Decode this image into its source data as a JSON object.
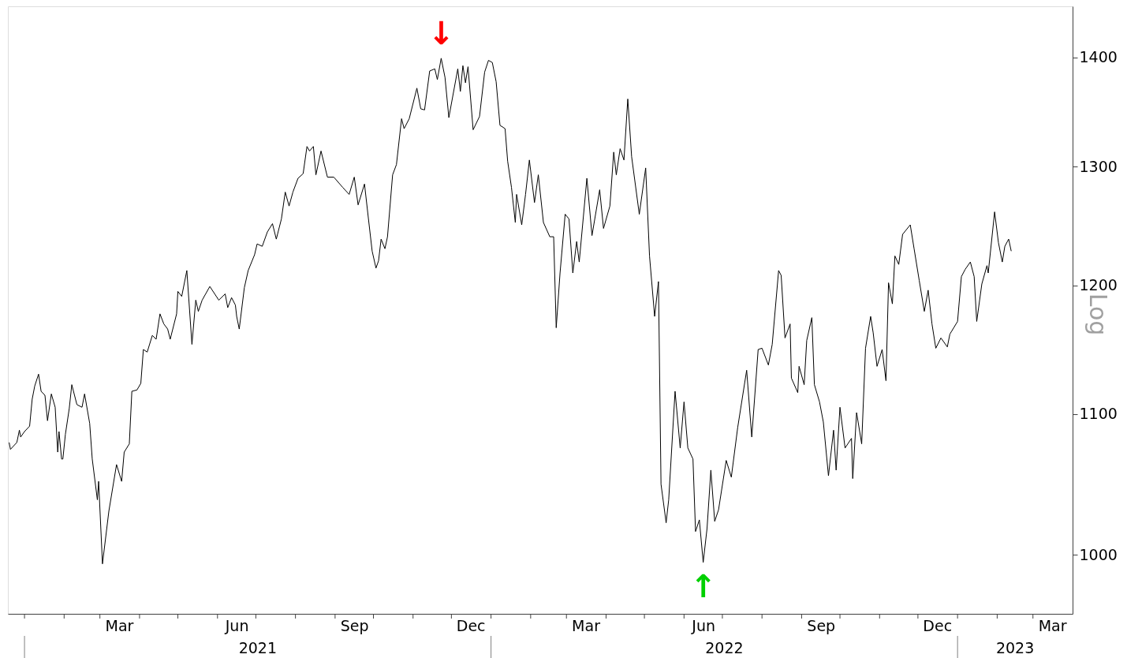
{
  "chart_data": {
    "type": "line",
    "ylabel": "Log",
    "log": true,
    "grid": false,
    "line_style": "solid",
    "ylim": [
      961,
      1449
    ],
    "yticks": [
      1000,
      1100,
      1200,
      1300,
      1400
    ],
    "xlim": [
      "2020-12-19",
      "2023-04-01"
    ],
    "xticks": [
      {
        "value": "2021-01-01",
        "label": null
      },
      {
        "value": "2021-02-01",
        "label": null
      },
      {
        "value": "2021-03-01",
        "label": null
      },
      {
        "value": "2021-03-16",
        "label": "Mar"
      },
      {
        "value": "2021-04-01",
        "label": null
      },
      {
        "value": "2021-05-01",
        "label": null
      },
      {
        "value": "2021-06-01",
        "label": null
      },
      {
        "value": "2021-06-16",
        "label": "Jun"
      },
      {
        "value": "2021-07-01",
        "label": null
      },
      {
        "value": "2021-08-01",
        "label": null
      },
      {
        "value": "2021-09-01",
        "label": null
      },
      {
        "value": "2021-09-16",
        "label": "Sep"
      },
      {
        "value": "2021-10-01",
        "label": null
      },
      {
        "value": "2021-11-01",
        "label": null
      },
      {
        "value": "2021-12-01",
        "label": null
      },
      {
        "value": "2021-12-16",
        "label": "Dec"
      },
      {
        "value": "2022-01-01",
        "label": null
      },
      {
        "value": "2022-02-01",
        "label": null
      },
      {
        "value": "2022-03-01",
        "label": null
      },
      {
        "value": "2022-03-16",
        "label": "Mar"
      },
      {
        "value": "2022-04-01",
        "label": null
      },
      {
        "value": "2022-05-01",
        "label": null
      },
      {
        "value": "2022-06-01",
        "label": null
      },
      {
        "value": "2022-06-16",
        "label": "Jun"
      },
      {
        "value": "2022-07-01",
        "label": null
      },
      {
        "value": "2022-08-01",
        "label": null
      },
      {
        "value": "2022-09-01",
        "label": null
      },
      {
        "value": "2022-09-16",
        "label": "Sep"
      },
      {
        "value": "2022-10-01",
        "label": null
      },
      {
        "value": "2022-11-01",
        "label": null
      },
      {
        "value": "2022-12-01",
        "label": null
      },
      {
        "value": "2022-12-16",
        "label": "Dec"
      },
      {
        "value": "2023-01-01",
        "label": null
      },
      {
        "value": "2023-02-01",
        "label": null
      },
      {
        "value": "2023-03-01",
        "label": null
      },
      {
        "value": "2023-03-16",
        "label": "Mar"
      }
    ],
    "annotations": [
      "↓",
      "↑",
      "2021",
      "2022",
      "2023"
    ],
    "x": [
      "2020-12-20",
      "2020-12-21",
      "2020-12-26",
      "2020-12-28",
      "2020-12-29",
      "2021-01-01",
      "2021-01-05",
      "2021-01-07",
      "2021-01-09",
      "2021-01-12",
      "2021-01-14",
      "2021-01-17",
      "2021-01-19",
      "2021-01-22",
      "2021-01-25",
      "2021-01-27",
      "2021-01-28",
      "2021-01-30",
      "2021-01-31",
      "2021-02-02",
      "2021-02-05",
      "2021-02-07",
      "2021-02-11",
      "2021-02-15",
      "2021-02-17",
      "2021-02-21",
      "2021-02-23",
      "2021-02-27",
      "2021-02-28",
      "2021-03-03",
      "2021-03-08",
      "2021-03-14",
      "2021-03-18",
      "2021-03-20",
      "2021-03-24",
      "2021-03-26",
      "2021-03-30",
      "2021-04-02",
      "2021-04-04",
      "2021-04-07",
      "2021-04-11",
      "2021-04-14",
      "2021-04-17",
      "2021-04-20",
      "2021-04-23",
      "2021-04-25",
      "2021-04-30",
      "2021-05-01",
      "2021-05-04",
      "2021-05-08",
      "2021-05-12",
      "2021-05-15",
      "2021-05-17",
      "2021-05-20",
      "2021-05-26",
      "2021-06-02",
      "2021-06-07",
      "2021-06-09",
      "2021-06-12",
      "2021-06-15",
      "2021-06-16",
      "2021-06-18",
      "2021-06-22",
      "2021-06-25",
      "2021-06-30",
      "2021-07-02",
      "2021-07-06",
      "2021-07-10",
      "2021-07-14",
      "2021-07-17",
      "2021-07-21",
      "2021-07-24",
      "2021-07-27",
      "2021-07-30",
      "2021-08-03",
      "2021-08-07",
      "2021-08-10",
      "2021-08-12",
      "2021-08-15",
      "2021-08-17",
      "2021-08-21",
      "2021-08-26",
      "2021-08-31",
      "2021-09-07",
      "2021-09-12",
      "2021-09-16",
      "2021-09-19",
      "2021-09-24",
      "2021-09-27",
      "2021-09-30",
      "2021-10-03",
      "2021-10-05",
      "2021-10-07",
      "2021-10-10",
      "2021-10-12",
      "2021-10-16",
      "2021-10-19",
      "2021-10-23",
      "2021-10-25",
      "2021-10-29",
      "2021-11-04",
      "2021-11-07",
      "2021-11-10",
      "2021-11-14",
      "2021-11-18",
      "2021-11-20",
      "2021-11-23",
      "2021-11-26",
      "2021-11-29",
      "2021-12-06",
      "2021-12-08",
      "2021-12-10",
      "2021-12-12",
      "2021-12-14",
      "2021-12-18",
      "2021-12-23",
      "2021-12-27",
      "2021-12-30",
      "2022-01-02",
      "2022-01-05",
      "2022-01-08",
      "2022-01-12",
      "2022-01-14",
      "2022-01-17",
      "2022-01-20",
      "2022-01-21",
      "2022-01-25",
      "2022-01-28",
      "2022-01-31",
      "2022-02-04",
      "2022-02-07",
      "2022-02-11",
      "2022-02-16",
      "2022-02-19",
      "2022-02-21",
      "2022-02-24",
      "2022-02-28",
      "2022-03-03",
      "2022-03-06",
      "2022-03-09",
      "2022-03-11",
      "2022-03-17",
      "2022-03-21",
      "2022-03-27",
      "2022-03-30",
      "2022-04-04",
      "2022-04-07",
      "2022-04-09",
      "2022-04-12",
      "2022-04-15",
      "2022-04-18",
      "2022-04-21",
      "2022-04-27",
      "2022-05-02",
      "2022-05-05",
      "2022-05-09",
      "2022-05-12",
      "2022-05-14",
      "2022-05-18",
      "2022-05-20",
      "2022-05-25",
      "2022-05-29",
      "2022-06-01",
      "2022-06-04",
      "2022-06-08",
      "2022-06-10",
      "2022-06-13",
      "2022-06-16",
      "2022-06-19",
      "2022-06-22",
      "2022-06-25",
      "2022-06-28",
      "2022-07-04",
      "2022-07-08",
      "2022-07-13",
      "2022-07-20",
      "2022-07-24",
      "2022-07-29",
      "2022-08-01",
      "2022-08-06",
      "2022-08-09",
      "2022-08-14",
      "2022-08-16",
      "2022-08-19",
      "2022-08-23",
      "2022-08-24",
      "2022-08-29",
      "2022-08-30",
      "2022-09-03",
      "2022-09-05",
      "2022-09-09",
      "2022-09-11",
      "2022-09-15",
      "2022-09-18",
      "2022-09-22",
      "2022-09-26",
      "2022-09-28",
      "2022-10-01",
      "2022-10-05",
      "2022-10-10",
      "2022-10-11",
      "2022-10-14",
      "2022-10-18",
      "2022-10-21",
      "2022-10-25",
      "2022-10-27",
      "2022-10-30",
      "2022-11-03",
      "2022-11-06",
      "2022-11-08",
      "2022-11-11",
      "2022-11-13",
      "2022-11-16",
      "2022-11-19",
      "2022-11-22",
      "2022-11-25",
      "2022-11-28",
      "2022-12-02",
      "2022-12-06",
      "2022-12-09",
      "2022-12-12",
      "2022-12-15",
      "2022-12-19",
      "2022-12-24",
      "2022-12-26",
      "2023-01-01",
      "2023-01-04",
      "2023-01-07",
      "2023-01-11",
      "2023-01-14",
      "2023-01-16",
      "2023-01-20",
      "2023-01-24",
      "2023-01-25",
      "2023-01-30",
      "2023-02-02",
      "2023-02-05",
      "2023-02-07",
      "2023-02-10",
      "2023-02-12"
    ],
    "series": [
      {
        "color": "#000000",
        "values": [
          1079,
          1074,
          1079,
          1088,
          1083,
          1087,
          1091,
          1111,
          1121,
          1130,
          1117,
          1114,
          1095,
          1115,
          1105,
          1072,
          1087,
          1067,
          1067,
          1085,
          1104,
          1122,
          1107,
          1105,
          1115,
          1093,
          1067,
          1038,
          1051,
          994,
          1030,
          1063,
          1051,
          1072,
          1078,
          1117,
          1118,
          1123,
          1149,
          1147,
          1160,
          1157,
          1177,
          1169,
          1165,
          1157,
          1177,
          1195,
          1191,
          1212,
          1153,
          1188,
          1179,
          1188,
          1199,
          1188,
          1193,
          1182,
          1190,
          1184,
          1175,
          1165,
          1198,
          1212,
          1225,
          1234,
          1232,
          1244,
          1251,
          1238,
          1255,
          1278,
          1266,
          1278,
          1290,
          1294,
          1318,
          1314,
          1318,
          1293,
          1314,
          1291,
          1291,
          1282,
          1276,
          1291,
          1267,
          1285,
          1256,
          1228,
          1214,
          1220,
          1238,
          1230,
          1240,
          1293,
          1302,
          1343,
          1334,
          1343,
          1371,
          1352,
          1351,
          1387,
          1389,
          1379,
          1399,
          1381,
          1344,
          1389,
          1368,
          1392,
          1376,
          1391,
          1333,
          1345,
          1386,
          1397,
          1395,
          1377,
          1337,
          1334,
          1305,
          1282,
          1252,
          1276,
          1250,
          1276,
          1306,
          1269,
          1293,
          1252,
          1240,
          1240,
          1166,
          1210,
          1259,
          1255,
          1210,
          1236,
          1219,
          1290,
          1241,
          1280,
          1247,
          1266,
          1313,
          1293,
          1316,
          1306,
          1361,
          1309,
          1259,
          1299,
          1224,
          1175,
          1203,
          1049,
          1022,
          1038,
          1117,
          1075,
          1109,
          1075,
          1067,
          1016,
          1024,
          995,
          1018,
          1059,
          1023,
          1031,
          1066,
          1054,
          1090,
          1133,
          1083,
          1149,
          1150,
          1137,
          1153,
          1212,
          1208,
          1158,
          1169,
          1127,
          1116,
          1136,
          1122,
          1156,
          1174,
          1122,
          1109,
          1094,
          1055,
          1088,
          1059,
          1105,
          1075,
          1082,
          1053,
          1101,
          1078,
          1150,
          1175,
          1162,
          1136,
          1149,
          1125,
          1202,
          1185,
          1224,
          1217,
          1242,
          1246,
          1250,
          1230,
          1204,
          1179,
          1196,
          1169,
          1150,
          1158,
          1151,
          1161,
          1171,
          1207,
          1213,
          1219,
          1207,
          1171,
          1201,
          1216,
          1210,
          1261,
          1235,
          1219,
          1232,
          1238,
          1228
        ]
      }
    ]
  }
}
